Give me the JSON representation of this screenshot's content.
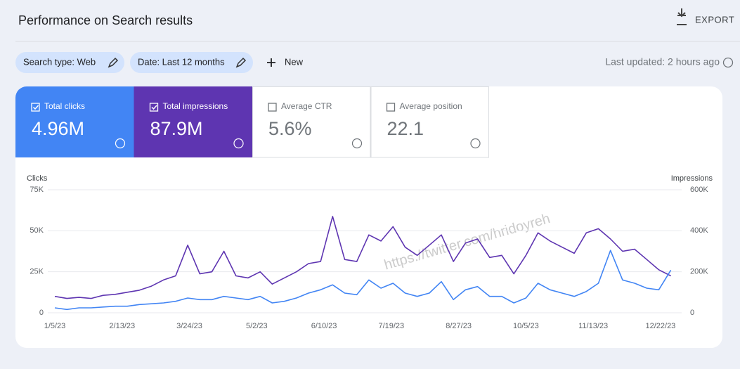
{
  "header": {
    "title": "Performance on Search results",
    "export": "EXPORT"
  },
  "filters": {
    "chips": [
      "Search type: Web",
      "Date: Last 12 months"
    ],
    "new": "New",
    "last_updated": "Last updated: 2 hours ago"
  },
  "metrics": [
    {
      "value": "4.96M",
      "checked": true
    },
    {
      "value": "87.9M",
      "checked": true
    },
    {
      "label": "Average CTR",
      "value": "5.6%",
      "checked": false
    },
    {
      "label": "Average position",
      "value": "22.1",
      "checked": false
    }
  ],
  "watermark": "https://twitter.com/hridoyreh",
  "chart_data": {
    "type": "line",
    "y_label": "Clicks",
    "y2_label": "Impressions",
    "grid": true,
    "x": [
      "1/5/23",
      "1/12/23",
      "1/19/23",
      "1/26/23",
      "2/2/23",
      "2/9/23",
      "2/16/23",
      "2/23/23",
      "3/2/23",
      "3/9/23",
      "3/16/23",
      "3/23/23",
      "3/30/23",
      "4/6/23",
      "4/13/23",
      "4/20/23",
      "4/27/23",
      "5/4/23",
      "5/11/23",
      "5/18/23",
      "5/25/23",
      "6/1/23",
      "6/8/23",
      "6/15/23",
      "6/22/23",
      "6/29/23",
      "7/6/23",
      "7/13/23",
      "7/20/23",
      "7/27/23",
      "8/3/23",
      "8/10/23",
      "8/17/23",
      "8/24/23",
      "8/31/23",
      "9/7/23",
      "9/14/23",
      "9/21/23",
      "9/28/23",
      "10/5/23",
      "10/12/23",
      "10/19/23",
      "10/26/23",
      "11/2/23",
      "11/9/23",
      "11/16/23",
      "11/23/23",
      "11/30/23",
      "12/7/23",
      "12/14/23",
      "12/21/23",
      "12/28/23"
    ],
    "xlim": [
      "1/5/23",
      "12/31/23"
    ],
    "xticks": [
      "1/5/23",
      "2/13/23",
      "3/24/23",
      "5/2/23",
      "6/10/23",
      "7/19/23",
      "8/27/23",
      "10/5/23",
      "11/13/23",
      "12/22/23"
    ],
    "ylim": [
      0,
      75000
    ],
    "yticks": [
      0,
      {
        "value": 25000,
        "label": "25K"
      },
      {
        "value": 50000,
        "label": "50K"
      },
      {
        "value": 75000,
        "label": "75K"
      }
    ],
    "y2lim": [
      0,
      600000
    ],
    "y2ticks": [
      0,
      {
        "value": 200000,
        "label": "200K"
      },
      {
        "value": 400000,
        "label": "400K"
      },
      {
        "value": 600000,
        "label": "600K"
      }
    ],
    "series": [
      {
        "name": "Total clicks",
        "color": "#4285f4",
        "values": [
          3000,
          2000,
          3000,
          3000,
          3500,
          4000,
          4000,
          5000,
          5500,
          6000,
          7000,
          9000,
          8000,
          8000,
          10000,
          9000,
          8000,
          10000,
          6000,
          7000,
          9000,
          12000,
          14000,
          17000,
          12000,
          11000,
          20000,
          15000,
          18000,
          12000,
          10000,
          12000,
          19000,
          8000,
          14000,
          16000,
          10000,
          10000,
          6000,
          9000,
          18000,
          14000,
          12000,
          10000,
          13000,
          18000,
          38000,
          20000,
          18000,
          15000,
          14000,
          26000
        ]
      },
      {
        "name": "Total impressions",
        "color": "#5e35b1",
        "axis": "y2",
        "values": [
          80000,
          70000,
          75000,
          70000,
          85000,
          90000,
          100000,
          110000,
          130000,
          160000,
          180000,
          330000,
          190000,
          200000,
          300000,
          180000,
          170000,
          200000,
          140000,
          170000,
          200000,
          240000,
          250000,
          470000,
          260000,
          250000,
          380000,
          350000,
          420000,
          320000,
          280000,
          330000,
          380000,
          250000,
          340000,
          360000,
          270000,
          280000,
          190000,
          280000,
          390000,
          350000,
          320000,
          290000,
          390000,
          410000,
          360000,
          300000,
          310000,
          260000,
          210000,
          180000
        ]
      }
    ]
  }
}
